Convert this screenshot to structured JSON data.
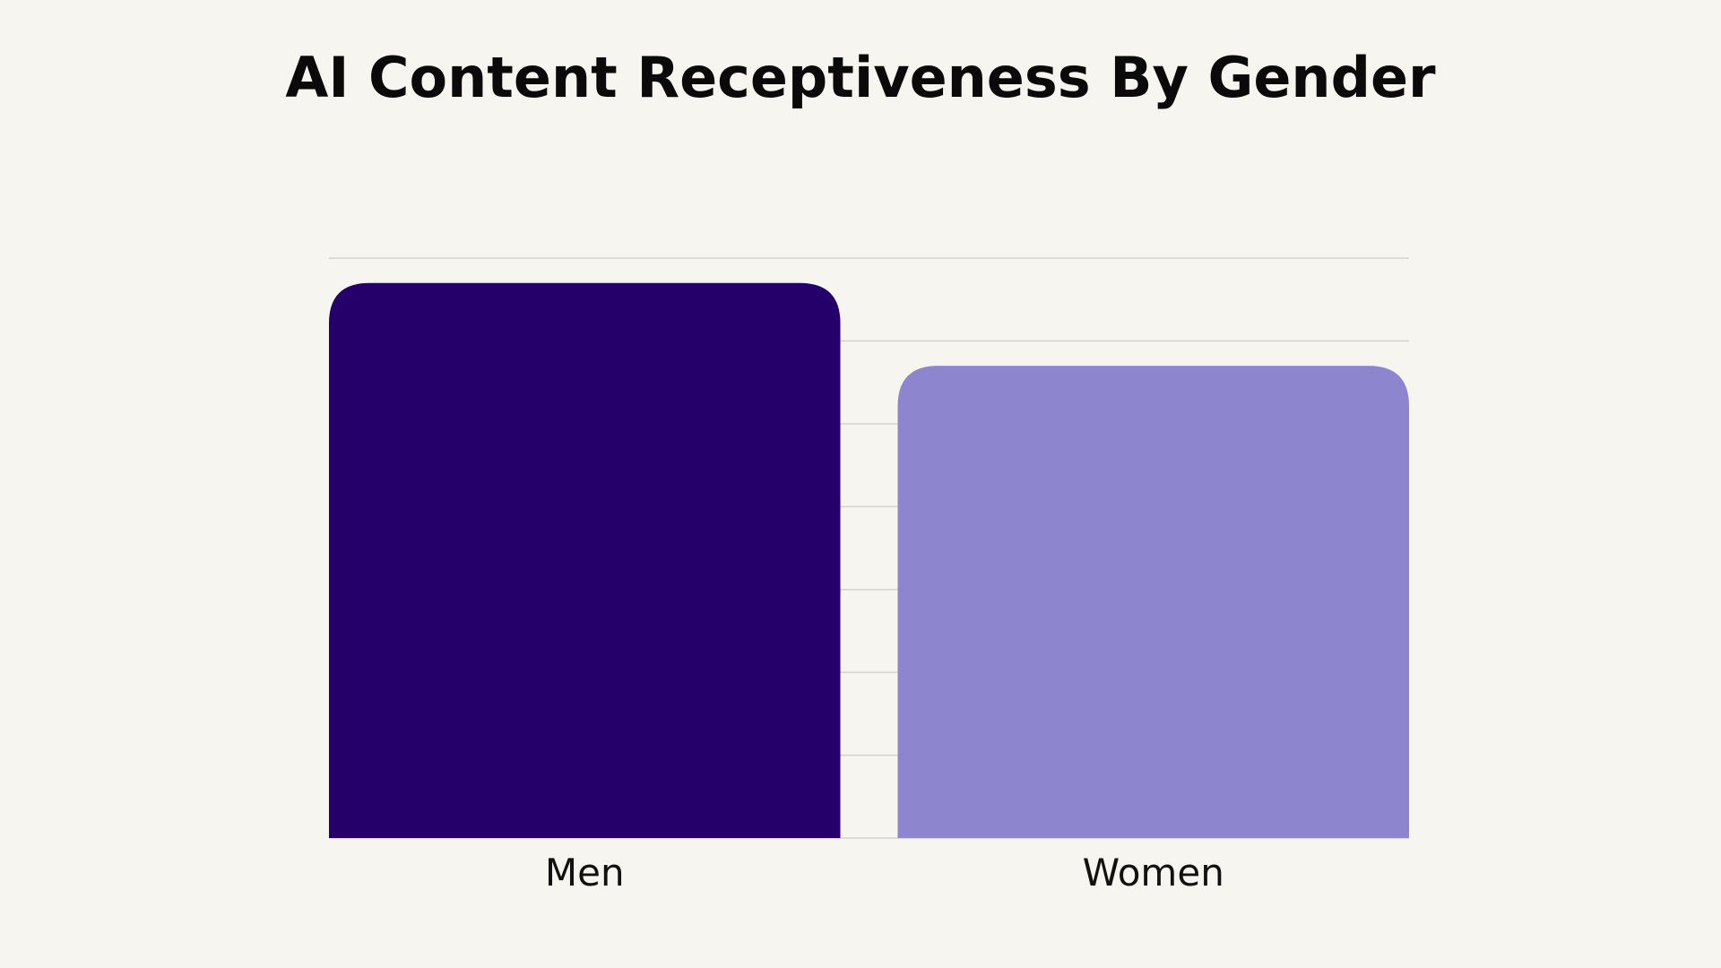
{
  "chart_data": {
    "type": "bar",
    "title": "AI Content Receptiveness By Gender",
    "categories": [
      "Men",
      "Women"
    ],
    "values": [
      67,
      57
    ],
    "ylim": [
      0,
      70
    ],
    "yticks": [
      0,
      10,
      20,
      30,
      40,
      50,
      60,
      70
    ],
    "grid": true,
    "legend": "none",
    "bar_colors": [
      "#25006b",
      "#8d86cf"
    ],
    "grid_color": "#d6d3ce",
    "background": "#f7f5f0"
  }
}
